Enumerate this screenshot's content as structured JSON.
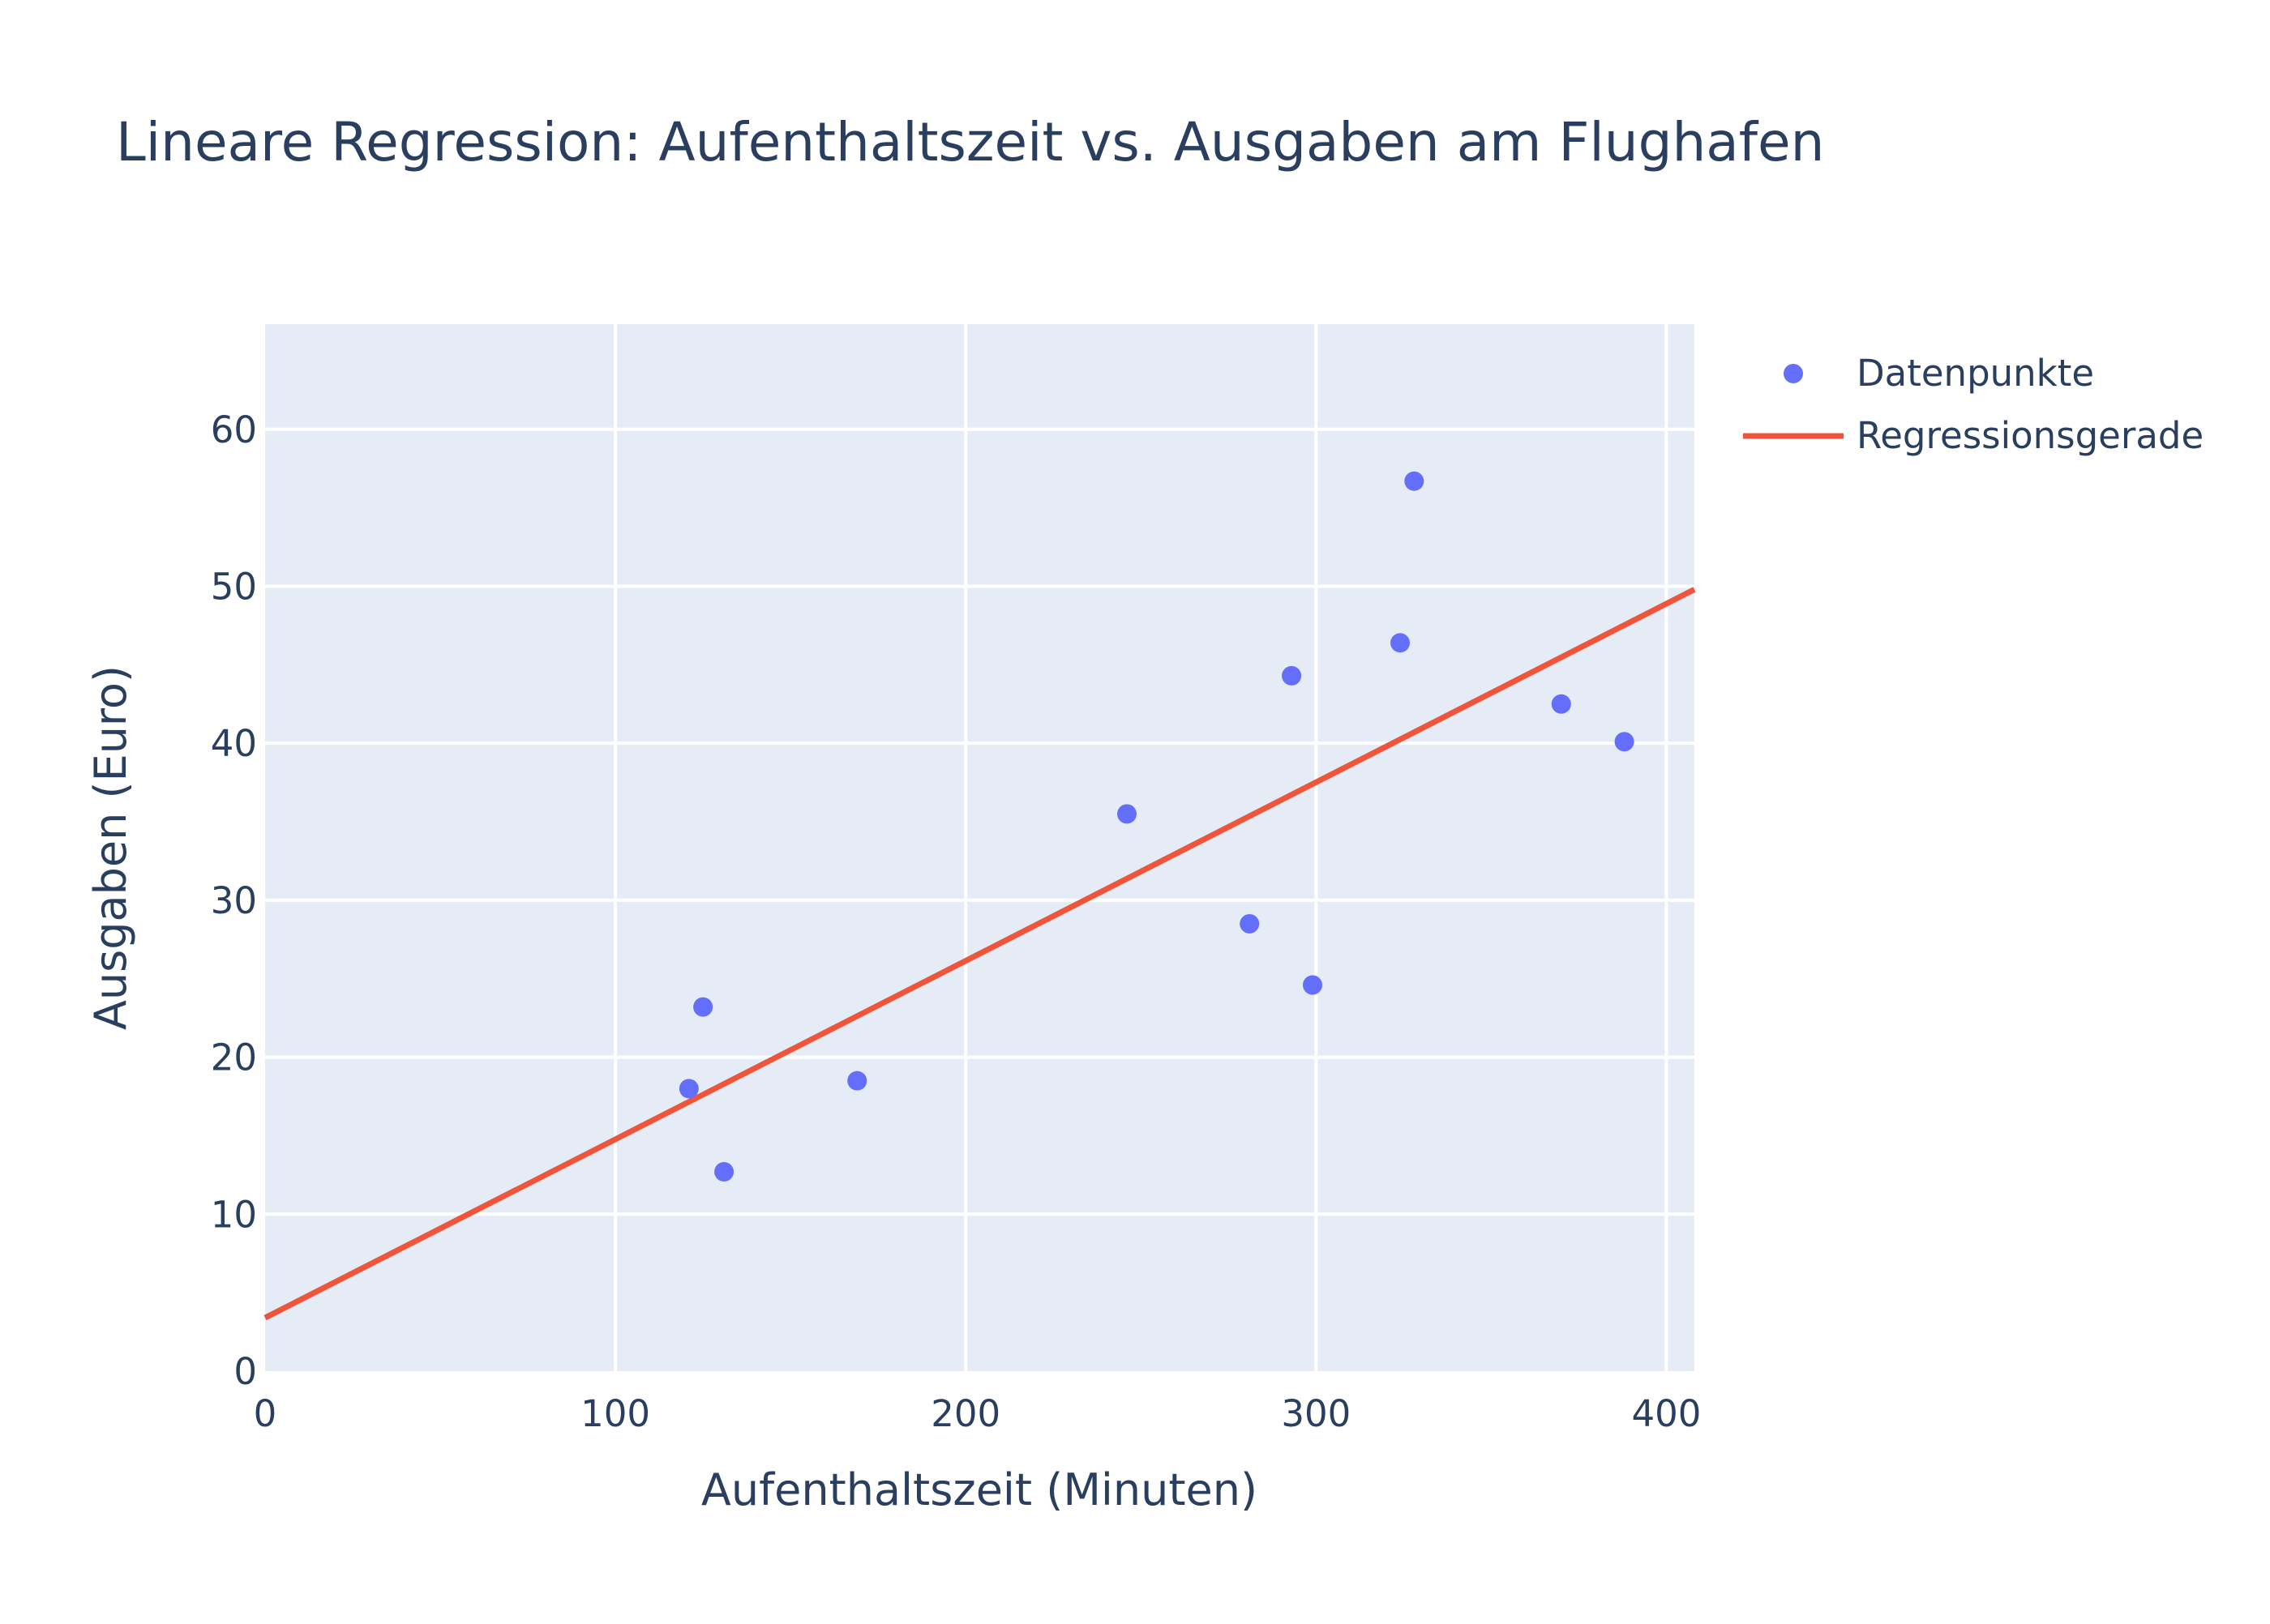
{
  "chart_data": {
    "type": "scatter",
    "title": "Lineare Regression: Aufenthaltszeit vs. Ausgaben am Flughafen",
    "xlabel": "Aufenthaltszeit (Minuten)",
    "ylabel": "Ausgaben (Euro)",
    "xlim": [
      0,
      408
    ],
    "ylim": [
      0,
      66.7
    ],
    "xticks": [
      0,
      100,
      200,
      300,
      400
    ],
    "yticks": [
      0,
      10,
      20,
      30,
      40,
      50,
      60
    ],
    "grid": true,
    "legend_position": "top-right",
    "series": [
      {
        "name": "Datenpunkte",
        "mode": "markers",
        "color": "#636efa",
        "x": [
          121,
          125,
          131,
          169,
          246,
          281,
          293,
          299,
          324,
          328,
          370,
          388
        ],
        "y": [
          18.0,
          23.2,
          12.7,
          18.5,
          35.5,
          28.5,
          44.3,
          24.6,
          46.4,
          56.7,
          42.5,
          40.1
        ]
      },
      {
        "name": "Regressionsgerade",
        "mode": "line",
        "color": "#ef553b",
        "x": [
          0,
          408
        ],
        "y": [
          3.4,
          49.8
        ]
      }
    ],
    "plot_background": "#e5ecf6",
    "text_color": "#2a3f5f"
  }
}
